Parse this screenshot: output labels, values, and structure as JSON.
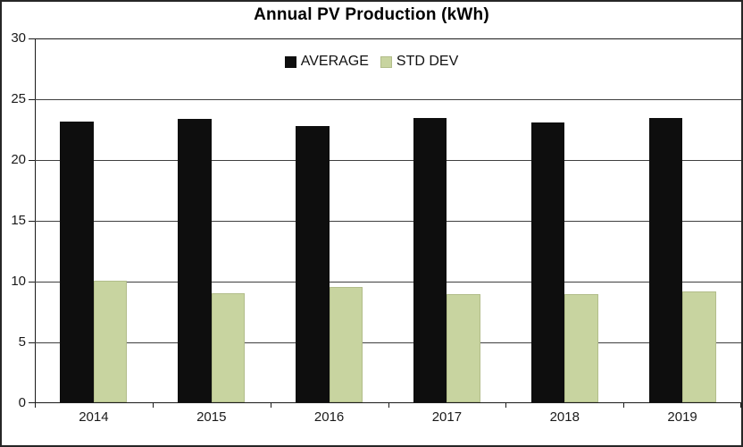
{
  "chart_data": {
    "type": "bar",
    "title": "Annual PV Production (kWh)",
    "categories": [
      "2014",
      "2015",
      "2016",
      "2017",
      "2018",
      "2019"
    ],
    "series": [
      {
        "name": "AVERAGE",
        "color": "#0e0e0e",
        "border_color": "#0e0e0e",
        "values": [
          23.1,
          23.3,
          22.7,
          23.4,
          23.0,
          23.4
        ]
      },
      {
        "name": "STD DEV",
        "color": "#c8d4a0",
        "border_color": "#b2bd8a",
        "values": [
          10.0,
          9.0,
          9.5,
          8.9,
          8.9,
          9.1
        ]
      }
    ],
    "xlabel": "",
    "ylabel": "",
    "ylim": [
      0,
      30
    ],
    "yticks": [
      30,
      25,
      20,
      15,
      10,
      5,
      0
    ],
    "grid": true,
    "legend_position": "top-center"
  },
  "colors": {
    "frame_border": "#262626",
    "gridline": "#3f3f3f",
    "axis": "#1a1a1a",
    "background": "#ffffff"
  }
}
